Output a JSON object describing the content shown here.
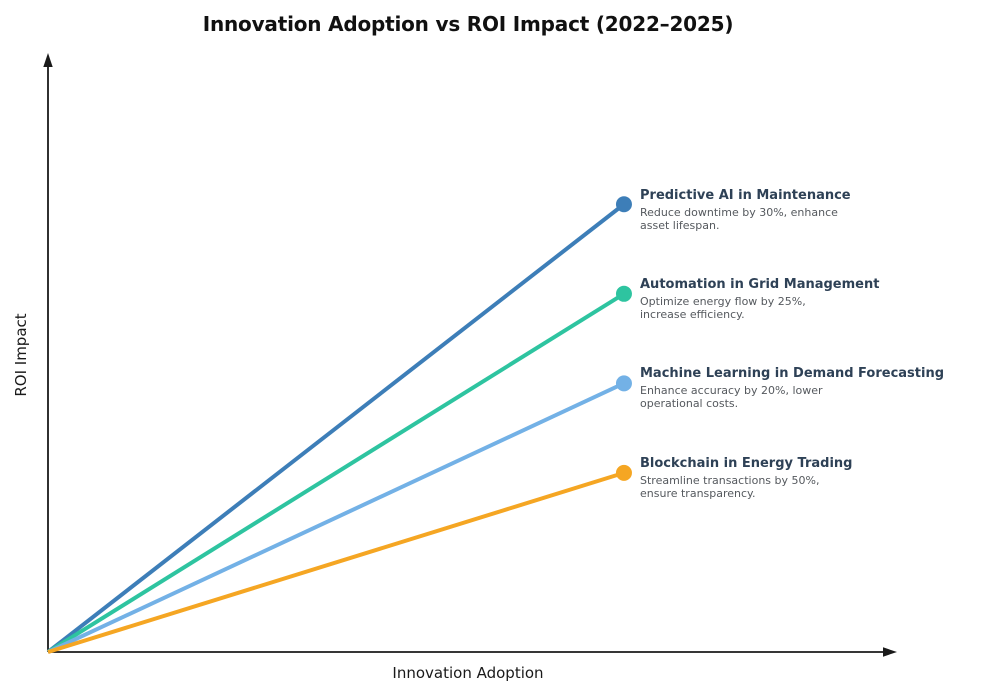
{
  "chart_data": {
    "type": "line",
    "title": "Innovation Adoption vs ROI Impact (2022–2025)",
    "xlabel": "Innovation Adoption",
    "ylabel": "ROI Impact",
    "xlim": [
      0,
      1
    ],
    "ylim": [
      0,
      1
    ],
    "grid": false,
    "legend": "inline-endpoint-labels",
    "axis_color": "#1a1a1a",
    "label_title_color": "#2E4156",
    "label_desc_color": "#55595E",
    "series": [
      {
        "name": "Predictive AI in Maintenance",
        "description": "Reduce downtime by 30%, enhance\nasset lifespan.",
        "color": "#3D7EB8",
        "x": [
          0,
          0.68
        ],
        "y": [
          0,
          0.75
        ]
      },
      {
        "name": "Automation in Grid Management",
        "description": "Optimize energy flow by 25%,\nincrease efficiency.",
        "color": "#2EC4A0",
        "x": [
          0,
          0.68
        ],
        "y": [
          0,
          0.6
        ]
      },
      {
        "name": "Machine Learning in Demand Forecasting",
        "description": "Enhance accuracy by 20%, lower\noperational costs.",
        "color": "#73B1E6",
        "x": [
          0,
          0.68
        ],
        "y": [
          0,
          0.45
        ]
      },
      {
        "name": "Blockchain in Energy Trading",
        "description": "Streamline transactions by 50%,\nensure transparency.",
        "color": "#F5A623",
        "x": [
          0,
          0.68
        ],
        "y": [
          0,
          0.3
        ]
      }
    ]
  }
}
